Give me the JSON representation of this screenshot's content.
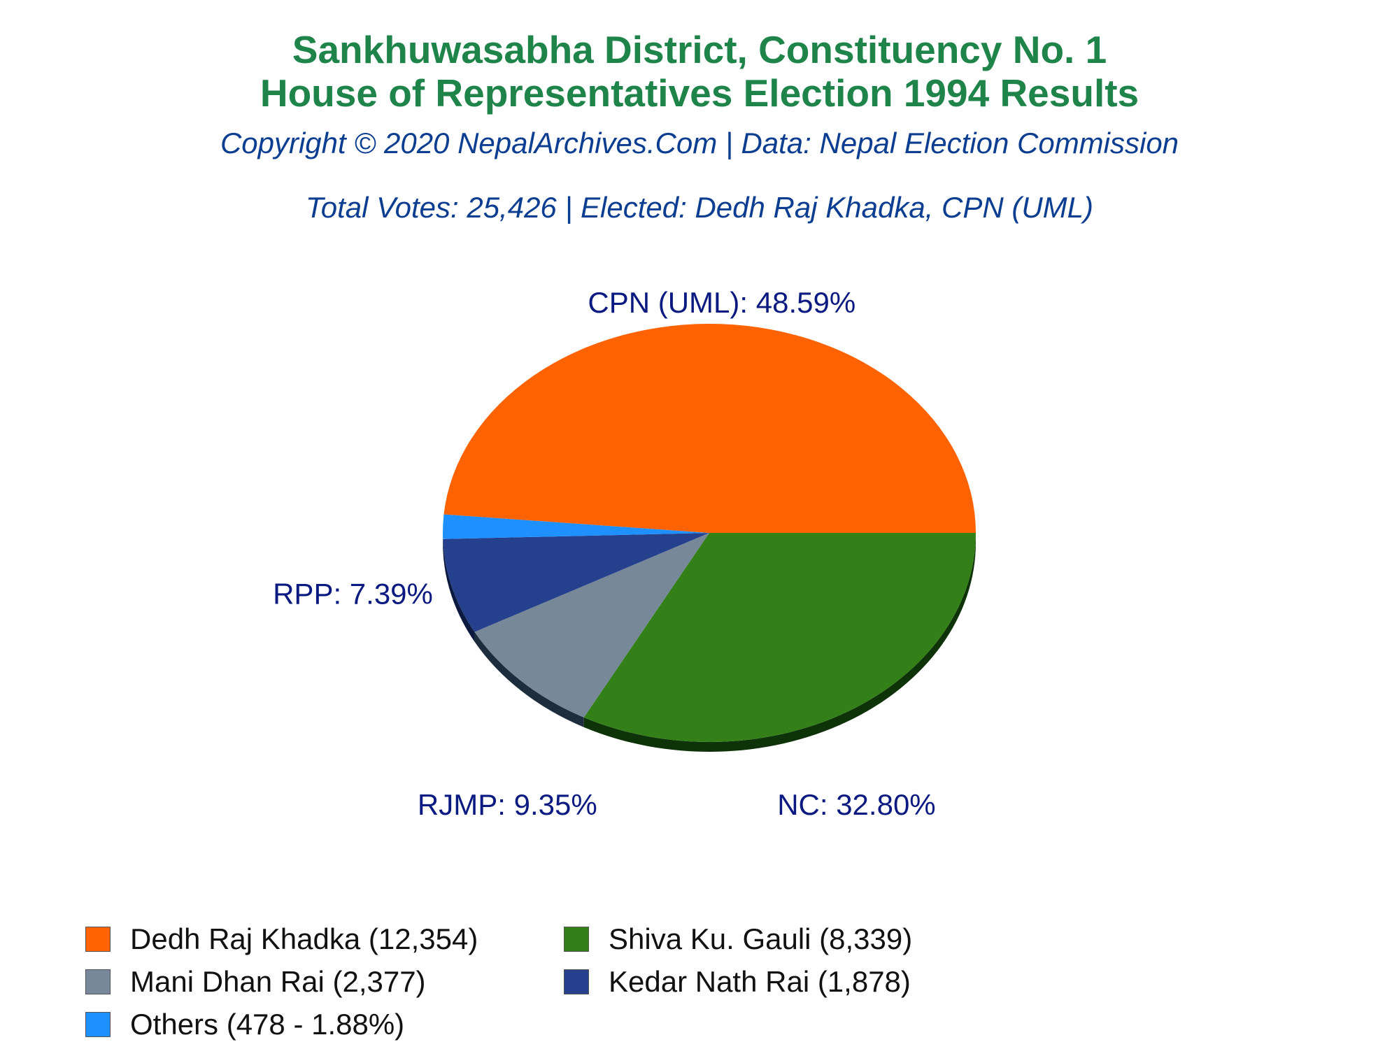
{
  "header": {
    "title_line1": "Sankhuwasabha District, Constituency No. 1",
    "title_line2": "House of Representatives Election 1994 Results",
    "subtitle": "Copyright © 2020 NepalArchives.Com | Data: Nepal Election Commission",
    "totals": "Total Votes: 25,426 | Elected: Dedh Raj Khadka, CPN (UML)"
  },
  "colors": {
    "title": "#1e8449",
    "subtitle": "#0b3d91",
    "slice_label": "#0a1a80"
  },
  "chart_data": {
    "type": "pie",
    "title": "Sankhuwasabha District, Constituency No. 1 House of Representatives Election 1994 Results",
    "total_votes": 25426,
    "slices": [
      {
        "party": "NC",
        "candidate": "Shiva Ku. Gauli",
        "votes": 8339,
        "percent": 32.8,
        "label": "NC: 32.80%",
        "legend": "Shiva Ku. Gauli (8,339)",
        "color": "#338018",
        "side_color": "#0f3309"
      },
      {
        "party": "RJMP",
        "candidate": "Mani Dhan Rai",
        "votes": 2377,
        "percent": 9.35,
        "label": "RJMP: 9.35%",
        "legend": "Mani Dhan Rai (2,377)",
        "color": "#778899",
        "side_color": "#1d2d3d"
      },
      {
        "party": "RPP",
        "candidate": "Kedar Nath Rai",
        "votes": 1878,
        "percent": 7.39,
        "label": "RPP: 7.39%",
        "legend": "Kedar Nath Rai (1,878)",
        "color": "#25408c",
        "side_color": "#0d1a40"
      },
      {
        "party": "Others",
        "candidate": "Others",
        "votes": 478,
        "percent": 1.88,
        "label": "",
        "legend": "Others (478 - 1.88%)",
        "color": "#1e90ff",
        "side_color": "#0a3f80"
      },
      {
        "party": "CPN (UML)",
        "candidate": "Dedh Raj Khadka",
        "votes": 12354,
        "percent": 48.59,
        "label": "CPN (UML): 48.59%",
        "legend": "Dedh Raj Khadka (12,354)",
        "color": "#ff6200",
        "side_color": "#b30000"
      }
    ],
    "legend_order": [
      "Dedh Raj Khadka",
      "Shiva Ku. Gauli",
      "Mani Dhan Rai",
      "Kedar Nath Rai",
      "Others"
    ]
  }
}
